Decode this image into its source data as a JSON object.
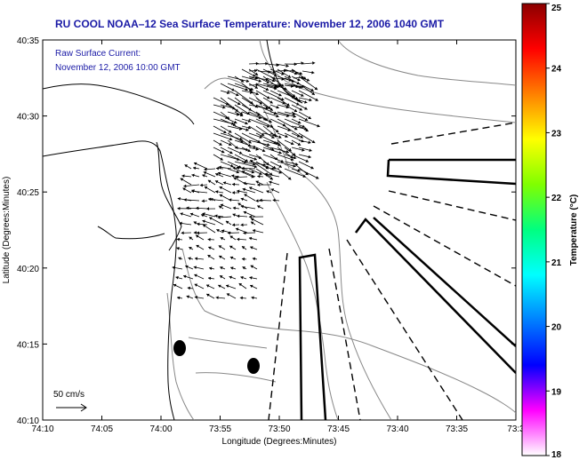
{
  "title": "RU COOL  NOAA–12  Sea Surface Temperature:  November 12, 2006 1040 GMT",
  "inset": {
    "line1": "Raw Surface Current:",
    "line2": "November 12, 2006 10:00 GMT"
  },
  "axes": {
    "xlabel": "Longitude (Degrees:Minutes)",
    "ylabel": "Latitude (Degrees:Minutes)",
    "x_ticks": [
      "74:10",
      "74:05",
      "74:00",
      "73:55",
      "73:50",
      "73:45",
      "73:40",
      "73:35",
      "73:3"
    ],
    "y_ticks": [
      "40:35",
      "40:30",
      "40:25",
      "40:20",
      "40:15",
      "40:10"
    ]
  },
  "scale": {
    "label": "50 cm/s"
  },
  "colorbar": {
    "label": "Temperature (°C)",
    "ticks": [
      "25",
      "24",
      "23",
      "22",
      "21",
      "20",
      "19",
      "18"
    ],
    "colors": [
      "#8b0000",
      "#ff0000",
      "#ff8000",
      "#ffff00",
      "#80ff00",
      "#00ff80",
      "#00ffff",
      "#0080ff",
      "#0000ff",
      "#ff00ff",
      "#ffffff"
    ]
  },
  "colors": {
    "title": "#1a1aa6",
    "coastline": "#000000",
    "bathymetry": "#888888",
    "vectors": "#000000"
  }
}
